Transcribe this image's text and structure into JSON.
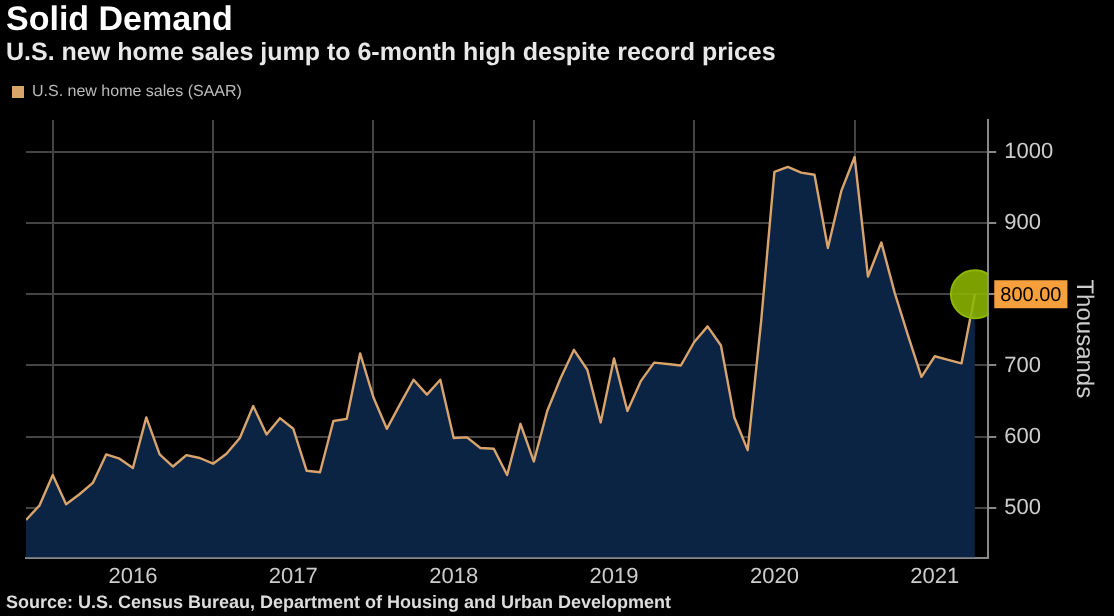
{
  "chart_data": {
    "type": "area",
    "title": "Solid Demand",
    "subtitle": "U.S. new home sales jump to 6-month high despite record prices",
    "ylabel": "Thousands",
    "annotations": [
      "Source: U.S. Census Bureau, Department of Housing and Urban Development"
    ],
    "x": [
      "2015-11",
      "2015-12",
      "2016-01",
      "2016-02",
      "2016-03",
      "2016-04",
      "2016-05",
      "2016-06",
      "2016-07",
      "2016-08",
      "2016-09",
      "2016-10",
      "2016-11",
      "2016-12",
      "2017-01",
      "2017-02",
      "2017-03",
      "2017-04",
      "2017-05",
      "2017-06",
      "2017-07",
      "2017-08",
      "2017-09",
      "2017-10",
      "2017-11",
      "2017-12",
      "2018-01",
      "2018-02",
      "2018-03",
      "2018-04",
      "2018-05",
      "2018-06",
      "2018-07",
      "2018-08",
      "2018-09",
      "2018-10",
      "2018-11",
      "2018-12",
      "2019-01",
      "2019-02",
      "2019-03",
      "2019-04",
      "2019-05",
      "2019-06",
      "2019-07",
      "2019-08",
      "2019-09",
      "2019-10",
      "2019-11",
      "2019-12",
      "2020-01",
      "2020-02",
      "2020-03",
      "2020-04",
      "2020-05",
      "2020-06",
      "2020-07",
      "2020-08",
      "2020-09",
      "2020-10",
      "2020-11",
      "2020-12",
      "2021-01",
      "2021-02",
      "2021-03",
      "2021-04",
      "2021-05",
      "2021-06",
      "2021-07",
      "2021-08",
      "2021-09",
      "2021-10"
    ],
    "series": [
      {
        "color": "#0c2444",
        "values": [
          483,
          503,
          546,
          505,
          519,
          535,
          575,
          569,
          556,
          627,
          575,
          558,
          574,
          570,
          562,
          576,
          598,
          643,
          603,
          626,
          611,
          552,
          550,
          622,
          625,
          717,
          655,
          611,
          646,
          680,
          659,
          680,
          598,
          599,
          584,
          583,
          546,
          618,
          565,
          636,
          682,
          722,
          694,
          620,
          710,
          636,
          678,
          704,
          702,
          700,
          733,
          755,
          728,
          627,
          581,
          761,
          972,
          979,
          971,
          968,
          865,
          945,
          993,
          825,
          873,
          802,
          742,
          684,
          713,
          708,
          703,
          800
        ]
      },
      {
        "type": "line",
        "name": "U.S. new home sales (SAAR)",
        "color": "#d9a46c",
        "values": [
          483,
          503,
          546,
          505,
          519,
          535,
          575,
          569,
          556,
          627,
          575,
          558,
          574,
          570,
          562,
          576,
          598,
          643,
          603,
          626,
          611,
          552,
          550,
          622,
          625,
          717,
          655,
          611,
          646,
          680,
          659,
          680,
          598,
          599,
          584,
          583,
          546,
          618,
          565,
          636,
          682,
          722,
          694,
          620,
          710,
          636,
          678,
          704,
          702,
          700,
          733,
          755,
          728,
          627,
          581,
          761,
          972,
          979,
          971,
          968,
          865,
          945,
          993,
          825,
          873,
          802,
          742,
          684,
          713,
          708,
          703,
          800
        ]
      },
      {
        "type": "scatter",
        "color": "#8db600",
        "x": [
          "2021-10"
        ],
        "values": [
          800
        ],
        "value_labels": [
          "800.00"
        ]
      }
    ],
    "xlim": [
      "2015-11",
      "2021-11"
    ],
    "xticks": [
      {
        "value": "2016-01",
        "label": null
      },
      {
        "value": "2016-07",
        "label": "2016"
      },
      {
        "value": "2017-01",
        "label": null
      },
      {
        "value": "2017-07",
        "label": "2017"
      },
      {
        "value": "2018-01",
        "label": null
      },
      {
        "value": "2018-07",
        "label": "2018"
      },
      {
        "value": "2019-01",
        "label": null
      },
      {
        "value": "2019-07",
        "label": "2019"
      },
      {
        "value": "2020-01",
        "label": null
      },
      {
        "value": "2020-07",
        "label": "2020"
      },
      {
        "value": "2021-01",
        "label": null
      },
      {
        "value": "2021-07",
        "label": "2021"
      }
    ],
    "ylim": [
      430,
      1045
    ],
    "yticks": [
      500,
      600,
      700,
      {
        "value": 800,
        "label": null
      },
      900,
      1000
    ],
    "grid": true,
    "legend": "top left"
  }
}
